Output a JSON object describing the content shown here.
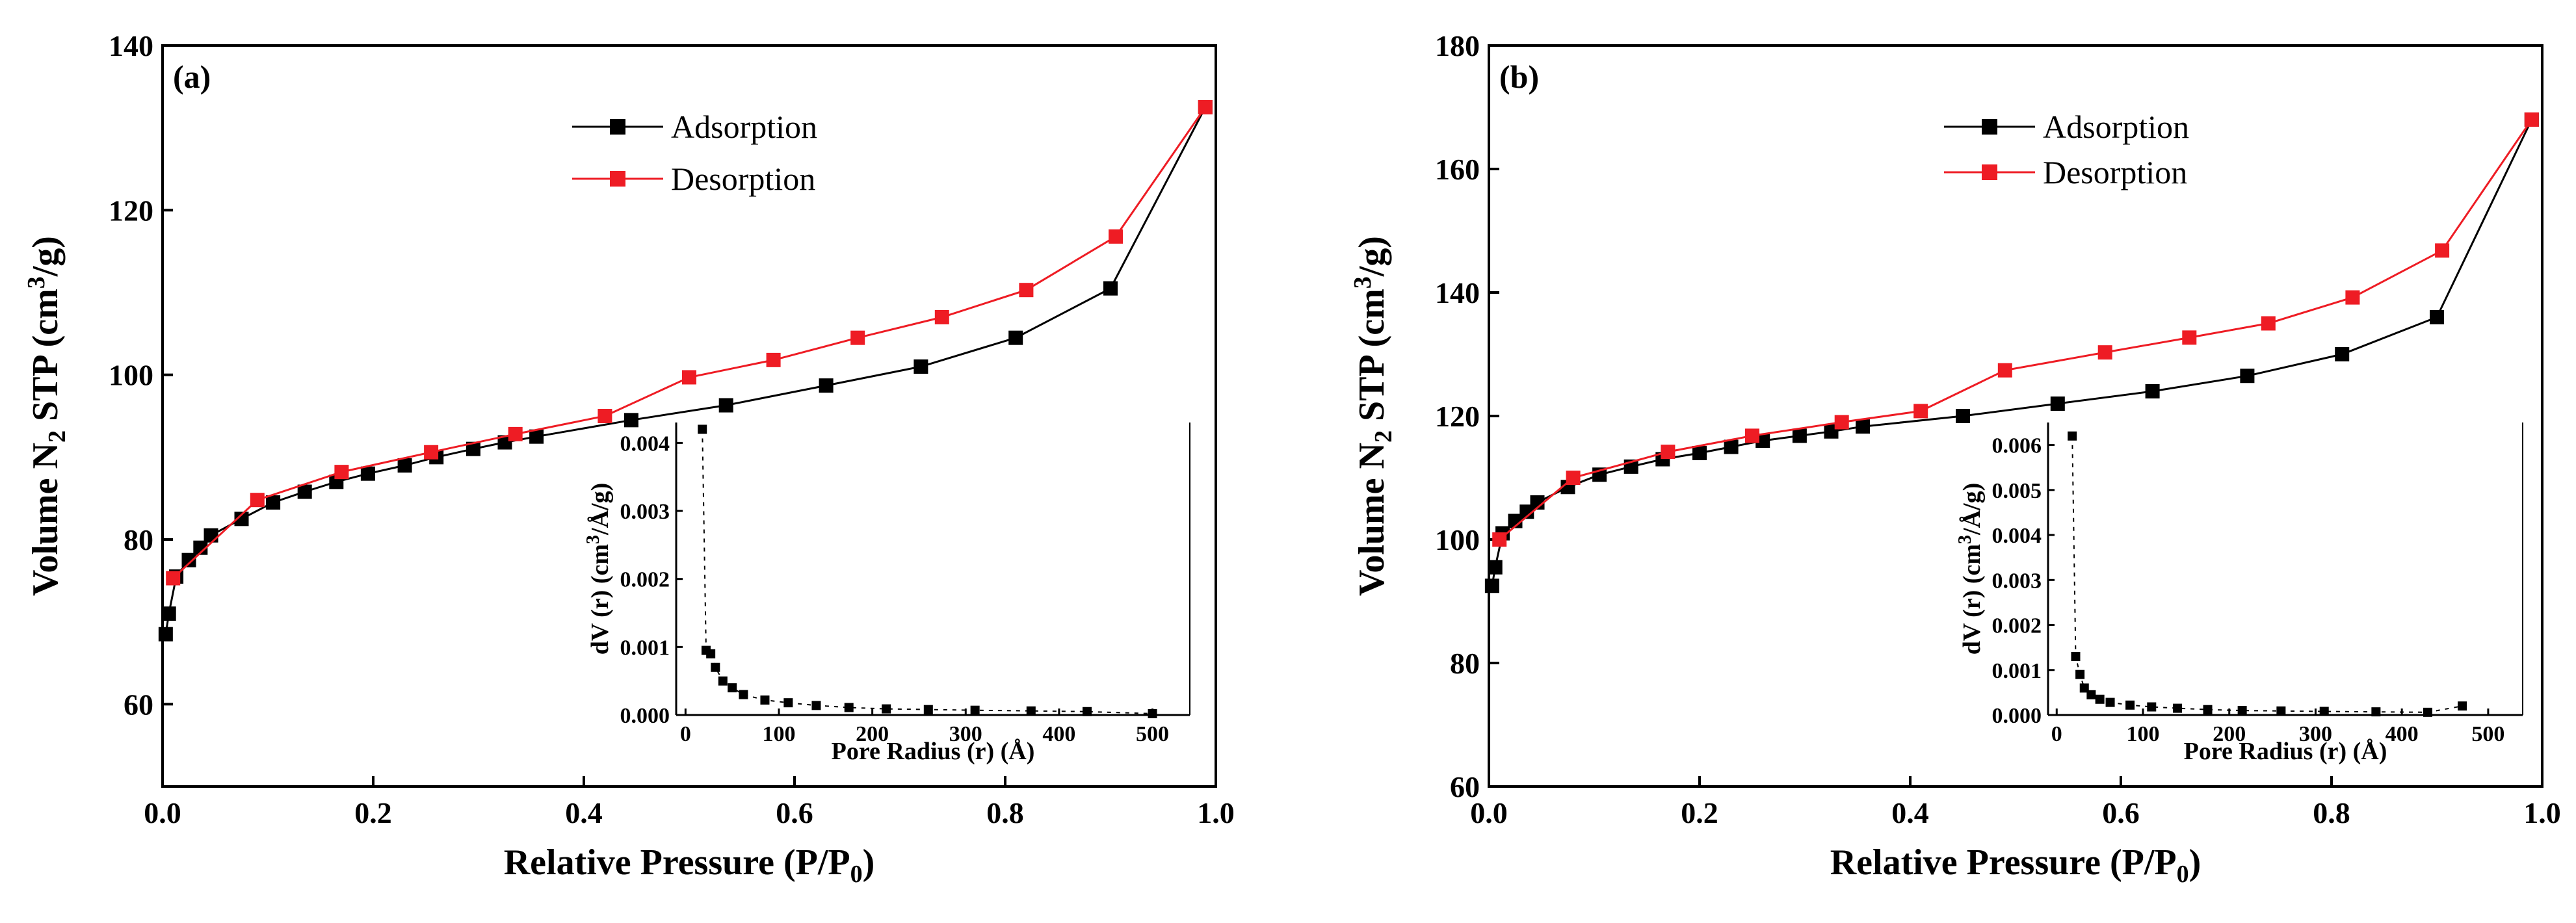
{
  "chart_data": [
    {
      "type": "line",
      "panel_label": "(a)",
      "xlabel": "Relative Pressure (P/P₀)",
      "ylabel": "Volume N₂ STP (cm³/g)",
      "xlim": [
        0,
        1
      ],
      "ylim": [
        50,
        140
      ],
      "xticks": [
        0.0,
        0.2,
        0.4,
        0.6,
        0.8,
        1.0
      ],
      "xtick_labels": [
        "0.0",
        "0.2",
        "0.4",
        "0.6",
        "0.8",
        "1.0"
      ],
      "yticks": [
        60,
        80,
        100,
        120,
        140
      ],
      "ytick_labels": [
        "60",
        "80",
        "100",
        "120",
        "140"
      ],
      "legend_placement": "top-right",
      "series": [
        {
          "name": "Adsorption",
          "color": "#000000",
          "x": [
            0.003,
            0.006,
            0.013,
            0.025,
            0.036,
            0.046,
            0.075,
            0.105,
            0.135,
            0.165,
            0.195,
            0.23,
            0.26,
            0.295,
            0.325,
            0.355,
            0.445,
            0.535,
            0.63,
            0.72,
            0.81,
            0.9,
            0.99
          ],
          "y": [
            68.5,
            71,
            75.5,
            77.5,
            79,
            80.5,
            82.5,
            84.5,
            85.8,
            87,
            88,
            89,
            90,
            91,
            91.8,
            92.5,
            94.5,
            96.3,
            98.7,
            101,
            104.5,
            110.5,
            132.5
          ]
        },
        {
          "name": "Desorption",
          "color": "#ee1c24",
          "x": [
            0.99,
            0.905,
            0.82,
            0.74,
            0.66,
            0.58,
            0.5,
            0.42,
            0.335,
            0.255,
            0.17,
            0.09,
            0.01
          ],
          "y": [
            132.5,
            116.8,
            110.3,
            107,
            104.5,
            101.8,
            99.7,
            95,
            92.8,
            90.6,
            88.2,
            84.8,
            75.3
          ]
        }
      ],
      "inset": {
        "type": "scatter",
        "xlabel": "Pore Radius (r) (Å)",
        "ylabel": "dV (r) (cm³/Å/g)",
        "xlim": [
          -10,
          540
        ],
        "ylim": [
          0,
          0.0043
        ],
        "xticks": [
          0,
          100,
          200,
          300,
          400,
          500
        ],
        "xtick_labels": [
          "0",
          "100",
          "200",
          "300",
          "400",
          "500"
        ],
        "yticks": [
          0,
          0.001,
          0.002,
          0.003,
          0.004
        ],
        "ytick_labels": [
          "0.000",
          "0.001",
          "0.002",
          "0.003",
          "0.004"
        ],
        "x": [
          18,
          22,
          27,
          32,
          40,
          50,
          62,
          85,
          110,
          140,
          175,
          215,
          260,
          310,
          370,
          430,
          500
        ],
        "y": [
          0.0042,
          0.00095,
          0.0009,
          0.0007,
          0.0005,
          0.0004,
          0.0003,
          0.00022,
          0.00018,
          0.00014,
          0.00011,
          9e-05,
          8e-05,
          7e-05,
          6e-05,
          5e-05,
          2e-05
        ]
      }
    },
    {
      "type": "line",
      "panel_label": "(b)",
      "xlabel": "Relative Pressure (P/P₀)",
      "ylabel": "Volume N₂ STP (cm³/g)",
      "xlim": [
        0,
        1
      ],
      "ylim": [
        60,
        180
      ],
      "xticks": [
        0.0,
        0.2,
        0.4,
        0.6,
        0.8,
        1.0
      ],
      "xtick_labels": [
        "0.0",
        "0.2",
        "0.4",
        "0.6",
        "0.8",
        "1.0"
      ],
      "yticks": [
        60,
        80,
        100,
        120,
        140,
        160,
        180
      ],
      "ytick_labels": [
        "60",
        "80",
        "100",
        "120",
        "140",
        "160",
        "180"
      ],
      "legend_placement": "top-right",
      "series": [
        {
          "name": "Adsorption",
          "color": "#000000",
          "x": [
            0.003,
            0.006,
            0.013,
            0.025,
            0.036,
            0.046,
            0.075,
            0.105,
            0.135,
            0.165,
            0.2,
            0.23,
            0.26,
            0.295,
            0.325,
            0.355,
            0.45,
            0.54,
            0.63,
            0.72,
            0.81,
            0.9,
            0.99
          ],
          "y": [
            92.5,
            95.5,
            101,
            103,
            104.5,
            106,
            108.5,
            110.5,
            111.8,
            113,
            114,
            115,
            116,
            116.8,
            117.5,
            118.3,
            120,
            122,
            124,
            126.5,
            130,
            136,
            168
          ]
        },
        {
          "name": "Desorption",
          "color": "#ee1c24",
          "x": [
            0.99,
            0.905,
            0.82,
            0.74,
            0.665,
            0.585,
            0.49,
            0.41,
            0.335,
            0.25,
            0.17,
            0.08,
            0.01
          ],
          "y": [
            168,
            146.8,
            139.2,
            135,
            132.7,
            130.3,
            127.4,
            120.8,
            119,
            116.8,
            114.2,
            110,
            100
          ]
        }
      ],
      "inset": {
        "type": "scatter",
        "xlabel": "Pore Radius (r) (Å)",
        "ylabel": "dV (r) (cm³/Å/g)",
        "xlim": [
          -10,
          540
        ],
        "ylim": [
          0,
          0.0065
        ],
        "xticks": [
          0,
          100,
          200,
          300,
          400,
          500
        ],
        "xtick_labels": [
          "0",
          "100",
          "200",
          "300",
          "400",
          "500"
        ],
        "yticks": [
          0,
          0.001,
          0.002,
          0.003,
          0.004,
          0.005,
          0.006
        ],
        "ytick_labels": [
          "0.000",
          "0.001",
          "0.002",
          "0.003",
          "0.004",
          "0.005",
          "0.006"
        ],
        "x": [
          18,
          22,
          27,
          32,
          40,
          50,
          62,
          85,
          110,
          140,
          175,
          215,
          260,
          310,
          370,
          430,
          470
        ],
        "y": [
          0.0062,
          0.0013,
          0.0009,
          0.0006,
          0.00045,
          0.00035,
          0.00028,
          0.00022,
          0.00018,
          0.00015,
          0.00012,
          0.0001,
          9e-05,
          8e-05,
          7e-05,
          6e-05,
          0.0002
        ]
      }
    }
  ]
}
